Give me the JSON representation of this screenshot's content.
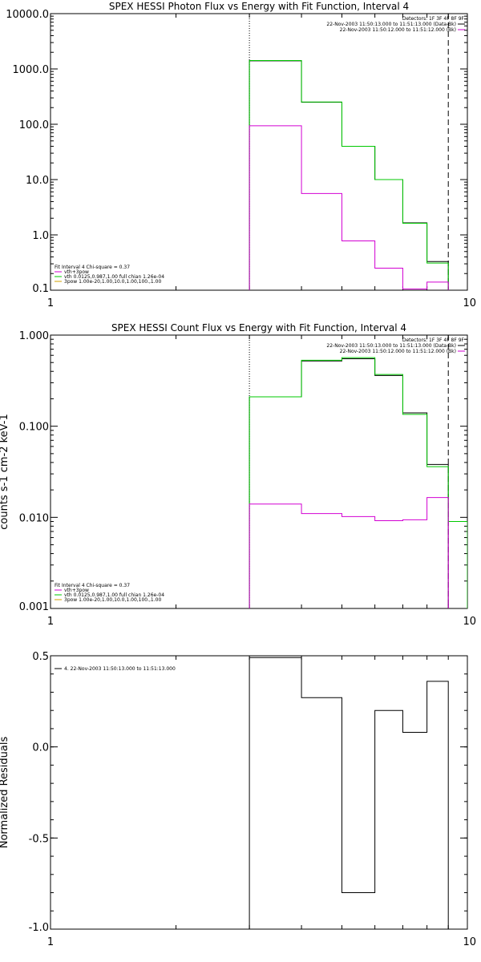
{
  "chart_data": [
    {
      "type": "line",
      "title": "SPEX HESSI Photon Flux vs Energy with Fit Function, Interval 4",
      "xlabel": "",
      "ylabel": "",
      "x_scale": "log",
      "y_scale": "log",
      "xlim": [
        1,
        10
      ],
      "ylim": [
        0.1,
        10000
      ],
      "x_ticks": [
        "1",
        "10"
      ],
      "y_ticks": [
        "10000.0",
        "1000.0",
        "100.0",
        "10.0",
        "1.0",
        "0.1"
      ],
      "y_tick_values": [
        10000,
        1000,
        100,
        10,
        1,
        0.1
      ],
      "vlines": [
        {
          "x": 3,
          "style": "dotted"
        },
        {
          "x": 9,
          "style": "dashed"
        }
      ],
      "legend_right": {
        "lines": [
          "Detectors: 1F 3F 4F 8F 9F",
          "22-Nov-2003 11:50:13.000 to 11:51:13.000 (Data-Bk)",
          "22-Nov-2003 11:50:12.000 to 11:51:12.000 (Bk)"
        ],
        "colors": [
          "",
          "#000000",
          "#d200d2"
        ]
      },
      "legend_left": {
        "lines": [
          "Fit Interval 4    Chi-square = 0.37",
          "vth+3pow",
          "vth 0.0125,0.987,1.00   full chian 1.26e-04",
          "3pow 1.00e-20,1.00,10.0,1.00,100.,1.00"
        ],
        "colors": [
          "",
          "#d200d2",
          "#00c800",
          "#d2a000"
        ]
      },
      "edges": [
        3,
        4,
        5,
        6,
        7,
        8,
        9
      ],
      "series": [
        {
          "name": "22-Nov-2003 11:50:13.000 to 11:51:13.000 (Data-Bk)",
          "color": "#000000",
          "values": [
            1400,
            250,
            40,
            10,
            1.65,
            0.33
          ]
        },
        {
          "name": "vth 0.0125,0.987,1.00   full chian 1.26e-04",
          "color": "#00c800",
          "values": [
            1420,
            252,
            40,
            10,
            1.62,
            0.31
          ]
        },
        {
          "name": "22-Nov-2003 11:50:12.000 to 11:51:12.000 (Bk)",
          "color": "#d200d2",
          "values": [
            94,
            5.6,
            0.78,
            0.25,
            0.105,
            0.14
          ]
        }
      ]
    },
    {
      "type": "line",
      "title": "SPEX HESSI Count Flux vs Energy with Fit Function, Interval 4",
      "xlabel": "",
      "ylabel": "counts s-1 cm-2 keV-1",
      "x_scale": "log",
      "y_scale": "log",
      "xlim": [
        1,
        10
      ],
      "ylim": [
        0.001,
        1
      ],
      "x_ticks": [
        "1",
        "10"
      ],
      "y_ticks": [
        "1.000",
        "0.100",
        "0.010",
        "0.001"
      ],
      "y_tick_values": [
        1,
        0.1,
        0.01,
        0.001
      ],
      "vlines": [
        {
          "x": 3,
          "style": "dotted"
        },
        {
          "x": 9,
          "style": "dashed"
        }
      ],
      "legend_right": {
        "lines": [
          "Detectors: 1F 3F 4F 8F 9F",
          "22-Nov-2003 11:50:13.000 to 11:51:13.000 (Data-Bk)",
          "22-Nov-2003 11:50:12.000 to 11:51:12.000 (Bk)"
        ],
        "colors": [
          "",
          "#000000",
          "#d200d2"
        ]
      },
      "legend_left": {
        "lines": [
          "Fit Interval 4    Chi-square = 0.37",
          "vth+3pow",
          "vth 0.0125,0.987,1.00   full chian 1.26e-04",
          "3pow 1.00e-20,1.00,10.0,1.00,100.,1.00"
        ],
        "colors": [
          "",
          "#d200d2",
          "#00c800",
          "#d2a000"
        ]
      },
      "edges": [
        3,
        4,
        5,
        6,
        7,
        8,
        9,
        10
      ],
      "series": [
        {
          "name": "22-Nov-2003 11:50:13.000 to 11:51:13.000 (Data-Bk)",
          "color": "#000000",
          "values": [
            0.21,
            0.52,
            0.55,
            0.36,
            0.14,
            0.038
          ]
        },
        {
          "name": "vth 0.0125,0.987,1.00   full chian 1.26e-04",
          "color": "#00c800",
          "values": [
            0.21,
            0.53,
            0.565,
            0.37,
            0.135,
            0.036,
            0.009
          ]
        },
        {
          "name": "22-Nov-2003 11:50:12.000 to 11:51:12.000 (Bk)",
          "color": "#d200d2",
          "values": [
            0.014,
            0.011,
            0.0102,
            0.0092,
            0.0094,
            0.0165
          ]
        }
      ]
    },
    {
      "type": "line",
      "title": "",
      "xlabel": "",
      "ylabel": "Normalized Residuals",
      "x_scale": "log",
      "y_scale": "linear",
      "xlim": [
        1,
        10
      ],
      "ylim": [
        -1.0,
        0.5
      ],
      "x_ticks": [
        "1",
        "10"
      ],
      "y_ticks": [
        "0.5",
        "0.0",
        "-0.5",
        "-1.0"
      ],
      "y_tick_values": [
        0.5,
        0.0,
        -0.5,
        -1.0
      ],
      "legend_left": {
        "lines": [
          "4. 22-Nov-2003 11:50:13.000 to 11:51:13.000"
        ],
        "colors": [
          "#000000"
        ]
      },
      "edges": [
        3,
        4,
        5,
        6,
        7,
        8,
        9
      ],
      "series": [
        {
          "name": "4. 22-Nov-2003 11:50:13.000 to 11:51:13.000",
          "color": "#000000",
          "values": [
            0.49,
            0.27,
            -0.8,
            0.2,
            0.08,
            0.36
          ]
        }
      ]
    }
  ]
}
